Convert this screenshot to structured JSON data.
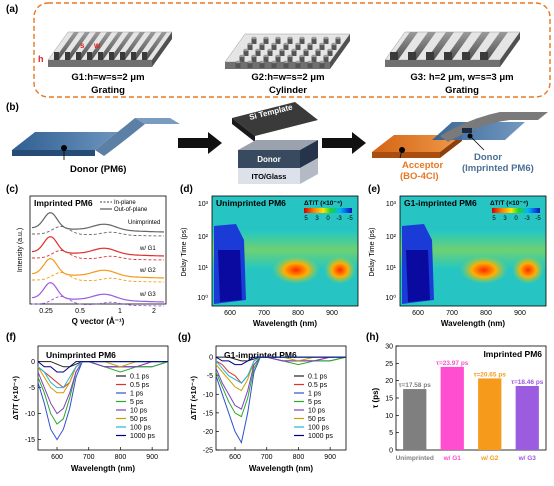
{
  "panel_labels": [
    "(a)",
    "(b)",
    "(c)",
    "(d)",
    "(e)",
    "(f)",
    "(g)",
    "(h)"
  ],
  "panel_a": {
    "height_marker": "h",
    "width_marker": "s",
    "spacing_marker": "w",
    "items": [
      {
        "caption": "G1:h=w=s=2 μm",
        "subcaption": "Grating"
      },
      {
        "caption": "G2:h=w=s=2 μm",
        "subcaption": "Cylinder"
      },
      {
        "caption": "G3: h=2 μm, w=s=3 μm",
        "subcaption": "Grating"
      }
    ]
  },
  "panel_b": {
    "donor_label": "Donor (PM6)",
    "template_label": "Si Template",
    "stack_top": "Donor",
    "stack_bottom": "ITO/Glass",
    "acceptor_label": "Acceptor",
    "acceptor_sub": "(BO-4Cl)",
    "donor2_label": "Donor",
    "donor2_sub": "(Imprinted PM6)"
  },
  "panel_c": {
    "title": "Imprinted PM6",
    "legend_inplane": "In-plane",
    "legend_outplane": "Out-of-plane",
    "curve_labels": [
      "Unimprinted",
      "w/ G1",
      "w/ G2",
      "w/ G3"
    ],
    "ylabel": "Intensity (a.u.)",
    "xlabel": "Q vector (Å⁻¹)",
    "xticks": [
      "0.25",
      "0.5",
      "1",
      "2"
    ]
  },
  "panel_d": {
    "title": "Unimprinted PM6",
    "scale_title": "ΔT/T (×10⁻⁴)",
    "scale_ticks": [
      "5",
      "3",
      "0",
      "-3",
      "-5"
    ],
    "ylabel": "Delay Time (ps)",
    "xlabel": "Wavelength (nm)",
    "xticks": [
      "600",
      "700",
      "800",
      "900"
    ],
    "yticks": [
      "10³",
      "10²",
      "10¹",
      "10⁰"
    ]
  },
  "panel_e": {
    "title": "G1-imprinted PM6",
    "scale_title": "ΔT/T (×10⁻⁴)",
    "scale_ticks": [
      "5",
      "3",
      "0",
      "-3",
      "-5"
    ],
    "ylabel": "Delay Time (ps)",
    "xlabel": "Wavelength (nm)",
    "xticks": [
      "600",
      "700",
      "800",
      "900"
    ],
    "yticks": [
      "10³",
      "10²",
      "10¹",
      "10⁰"
    ]
  },
  "colors": {
    "orange": "#e87722",
    "steel_blue": "#4a6f96",
    "g1": "#e5e5e5",
    "bar_gray": "#7f7f7f",
    "bar_pink": "#ff4fd0",
    "bar_orange": "#f59a1b",
    "bar_purple": "#9b5ce0"
  },
  "chart_data": [
    {
      "type": "line",
      "panel": "(f)",
      "title": "Unimprinted PM6",
      "xlabel": "Wavelength (nm)",
      "ylabel": "ΔT/T (×10⁻⁴)",
      "xlim": [
        540,
        950
      ],
      "ylim": [
        -17,
        3
      ],
      "xticks": [
        "600",
        "700",
        "800",
        "900"
      ],
      "yticks": [
        "0",
        "-5",
        "-10",
        "-15"
      ],
      "x": [
        540,
        560,
        580,
        600,
        620,
        640,
        660,
        680,
        700,
        750,
        800,
        850,
        900,
        950
      ],
      "series": [
        {
          "name": "0.1 ps",
          "color": "#222222",
          "values": [
            0,
            0,
            0,
            -0.5,
            -1,
            -1,
            -0.5,
            0,
            0,
            0,
            0,
            0,
            0,
            0
          ]
        },
        {
          "name": "0.5 ps",
          "color": "#e03030",
          "values": [
            -1,
            -2,
            -3,
            -4,
            -5,
            -4,
            -1,
            0,
            0,
            -1,
            -1,
            -1,
            0,
            0
          ]
        },
        {
          "name": "1 ps",
          "color": "#3050d0",
          "values": [
            -4,
            -8,
            -13,
            -15,
            -13,
            -9,
            -3,
            0,
            0,
            -1,
            -1,
            -1,
            -1,
            0
          ]
        },
        {
          "name": "5 ps",
          "color": "#2aa82a",
          "values": [
            -3,
            -6,
            -10,
            -12,
            -11,
            -7,
            -2,
            0,
            0,
            -1,
            -2,
            -1,
            -1,
            0
          ]
        },
        {
          "name": "10 ps",
          "color": "#8040c0",
          "values": [
            -2,
            -5,
            -8,
            -10,
            -9,
            -6,
            -2,
            0,
            0,
            -1,
            -1,
            -1,
            0,
            0
          ]
        },
        {
          "name": "50 ps",
          "color": "#c8a000",
          "values": [
            -1,
            -3,
            -5,
            -6,
            -6,
            -4,
            -1,
            0,
            0,
            0,
            -1,
            0,
            0,
            0
          ]
        },
        {
          "name": "100 ps",
          "color": "#20b8d8",
          "values": [
            -1,
            -2,
            -4,
            -5,
            -5,
            -3,
            -1,
            0,
            0,
            0,
            0,
            0,
            0,
            0
          ]
        },
        {
          "name": "1000 ps",
          "color": "#000080",
          "values": [
            0,
            -1,
            -1,
            -2,
            -2,
            -1,
            0,
            0,
            0,
            0,
            0,
            0,
            0,
            0
          ]
        }
      ]
    },
    {
      "type": "line",
      "panel": "(g)",
      "title": "G1-imprinted PM6",
      "xlabel": "Wavelength (nm)",
      "ylabel": "ΔT/T (×10⁻⁴)",
      "xlim": [
        540,
        950
      ],
      "ylim": [
        -25,
        3
      ],
      "xticks": [
        "600",
        "700",
        "800",
        "900"
      ],
      "yticks": [
        "0",
        "-5",
        "-10",
        "-15",
        "-20",
        "-25"
      ],
      "x": [
        540,
        560,
        580,
        600,
        620,
        640,
        660,
        680,
        700,
        750,
        800,
        850,
        900,
        950
      ],
      "series": [
        {
          "name": "0.1 ps",
          "color": "#222222",
          "values": [
            0,
            0,
            0,
            -0.5,
            -1,
            -1,
            -0.5,
            0,
            0,
            0,
            0,
            0,
            0,
            0
          ]
        },
        {
          "name": "0.5 ps",
          "color": "#e03030",
          "values": [
            -1,
            -2,
            -4,
            -5,
            -7,
            -5,
            -2,
            0,
            0,
            -1,
            -1,
            -1,
            0,
            0
          ]
        },
        {
          "name": "1 ps",
          "color": "#3050d0",
          "values": [
            -5,
            -10,
            -15,
            -20,
            -23,
            -15,
            -4,
            0,
            0,
            -1,
            -1,
            -1,
            -1,
            0
          ]
        },
        {
          "name": "5 ps",
          "color": "#2aa82a",
          "values": [
            -4,
            -8,
            -12,
            -15,
            -16,
            -11,
            -3,
            0,
            0,
            -1,
            -2,
            -1,
            -1,
            0
          ]
        },
        {
          "name": "10 ps",
          "color": "#8040c0",
          "values": [
            -3,
            -7,
            -10,
            -13,
            -14,
            -9,
            -2,
            0,
            0,
            -1,
            -1,
            -1,
            0,
            0
          ]
        },
        {
          "name": "50 ps",
          "color": "#c8a000",
          "values": [
            -2,
            -4,
            -6,
            -8,
            -9,
            -6,
            -1,
            0,
            0,
            0,
            -1,
            0,
            0,
            0
          ]
        },
        {
          "name": "100 ps",
          "color": "#20b8d8",
          "values": [
            -1,
            -3,
            -5,
            -6,
            -7,
            -5,
            -1,
            0,
            0,
            0,
            0,
            0,
            0,
            0
          ]
        },
        {
          "name": "1000 ps",
          "color": "#000080",
          "values": [
            0,
            -1,
            -1,
            -2,
            -2,
            -1,
            0,
            0,
            0,
            0,
            0,
            0,
            0,
            0
          ]
        }
      ]
    },
    {
      "type": "bar",
      "panel": "(h)",
      "title": "Imprinted PM6",
      "ylabel": "τ (ps)",
      "ylim": [
        0,
        30
      ],
      "yticks": [
        "0",
        "5",
        "10",
        "15",
        "20",
        "25",
        "30"
      ],
      "categories": [
        "Unimprinted",
        "w/ G1",
        "w/ G2",
        "w/ G3"
      ],
      "values": [
        17.58,
        23.97,
        20.65,
        18.46
      ],
      "value_labels": [
        "τ=17.58 ps",
        "τ=23.97 ps",
        "τ=20.65 ps",
        "τ=18.46 ps"
      ],
      "colors": [
        "#7f7f7f",
        "#ff4fd0",
        "#f59a1b",
        "#9b5ce0"
      ]
    }
  ]
}
